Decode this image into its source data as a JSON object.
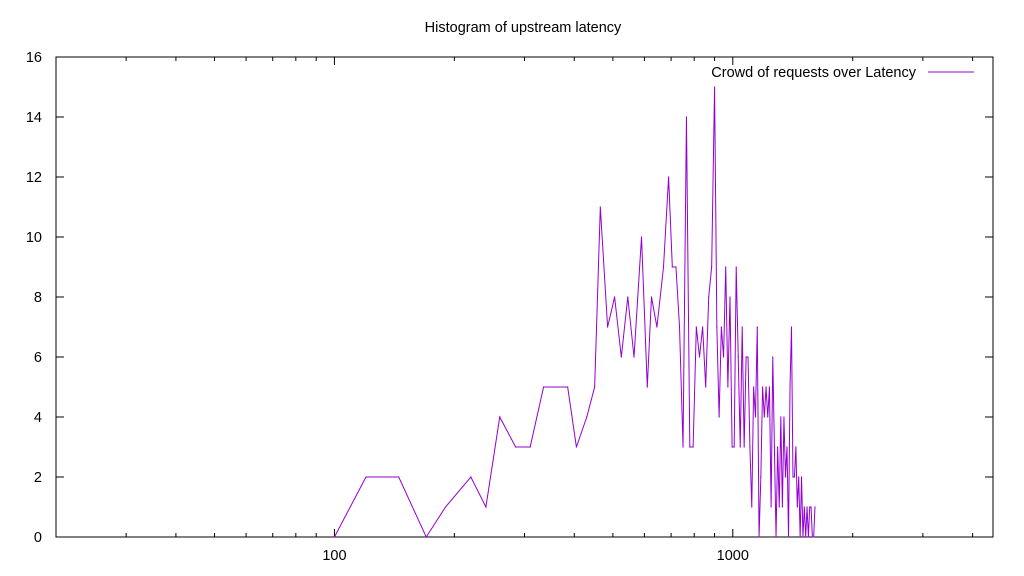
{
  "chart_data": {
    "type": "line",
    "title": "Histogram of upstream latency",
    "xlabel": "",
    "ylabel": "",
    "x_scale": "log",
    "xlim": [
      20,
      4500
    ],
    "ylim": [
      0,
      16
    ],
    "x_ticks": [
      100,
      1000
    ],
    "x_tick_labels": [
      "100",
      "1000"
    ],
    "y_ticks": [
      0,
      2,
      4,
      6,
      8,
      10,
      12,
      14,
      16
    ],
    "grid": false,
    "legend_position": "top-right",
    "series": [
      {
        "name": "Crowd of requests over Latency",
        "color": "#9400d3",
        "points": [
          [
            100,
            0
          ],
          [
            120,
            2
          ],
          [
            145,
            2
          ],
          [
            170,
            0
          ],
          [
            190,
            1
          ],
          [
            220,
            2
          ],
          [
            240,
            1
          ],
          [
            260,
            4
          ],
          [
            285,
            3
          ],
          [
            310,
            3
          ],
          [
            335,
            5
          ],
          [
            360,
            5
          ],
          [
            385,
            5
          ],
          [
            405,
            3
          ],
          [
            430,
            4
          ],
          [
            450,
            5
          ],
          [
            465,
            11
          ],
          [
            485,
            7
          ],
          [
            505,
            8
          ],
          [
            525,
            6
          ],
          [
            545,
            8
          ],
          [
            565,
            6
          ],
          [
            590,
            10
          ],
          [
            610,
            5
          ],
          [
            625,
            8
          ],
          [
            645,
            7
          ],
          [
            670,
            9
          ],
          [
            690,
            12
          ],
          [
            705,
            9
          ],
          [
            720,
            9
          ],
          [
            735,
            7
          ],
          [
            750,
            3
          ],
          [
            765,
            14
          ],
          [
            780,
            3
          ],
          [
            795,
            3
          ],
          [
            810,
            7
          ],
          [
            825,
            6
          ],
          [
            840,
            7
          ],
          [
            855,
            5
          ],
          [
            870,
            8
          ],
          [
            885,
            9
          ],
          [
            900,
            15
          ],
          [
            912,
            7
          ],
          [
            924,
            4
          ],
          [
            936,
            7
          ],
          [
            948,
            6
          ],
          [
            960,
            9
          ],
          [
            972,
            5
          ],
          [
            984,
            8
          ],
          [
            996,
            3
          ],
          [
            1008,
            3
          ],
          [
            1020,
            9
          ],
          [
            1032,
            6
          ],
          [
            1044,
            3
          ],
          [
            1056,
            7
          ],
          [
            1068,
            3
          ],
          [
            1080,
            6
          ],
          [
            1092,
            6
          ],
          [
            1104,
            3
          ],
          [
            1116,
            1
          ],
          [
            1128,
            5
          ],
          [
            1140,
            4
          ],
          [
            1152,
            7
          ],
          [
            1164,
            0
          ],
          [
            1176,
            2
          ],
          [
            1188,
            5
          ],
          [
            1200,
            4
          ],
          [
            1212,
            5
          ],
          [
            1224,
            4
          ],
          [
            1236,
            5
          ],
          [
            1248,
            1
          ],
          [
            1260,
            6
          ],
          [
            1272,
            3
          ],
          [
            1284,
            0
          ],
          [
            1296,
            3
          ],
          [
            1308,
            1
          ],
          [
            1320,
            4
          ],
          [
            1332,
            1
          ],
          [
            1344,
            4
          ],
          [
            1356,
            2
          ],
          [
            1368,
            3
          ],
          [
            1380,
            0
          ],
          [
            1392,
            5
          ],
          [
            1404,
            7
          ],
          [
            1416,
            2
          ],
          [
            1428,
            2
          ],
          [
            1440,
            3
          ],
          [
            1452,
            1
          ],
          [
            1464,
            2
          ],
          [
            1476,
            0
          ],
          [
            1488,
            2
          ],
          [
            1500,
            0
          ],
          [
            1512,
            1
          ],
          [
            1524,
            0
          ],
          [
            1536,
            1
          ],
          [
            1548,
            0
          ],
          [
            1560,
            1
          ],
          [
            1572,
            1
          ],
          [
            1584,
            0
          ],
          [
            1596,
            0
          ],
          [
            1608,
            1
          ]
        ]
      }
    ]
  }
}
